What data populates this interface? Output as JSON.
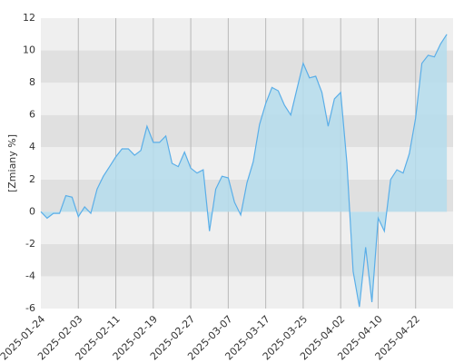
{
  "chart_data": {
    "type": "area",
    "y_label": "[Zmiany %]",
    "categories": [
      "2025-01-24",
      null,
      null,
      null,
      null,
      null,
      "2025-02-03",
      null,
      null,
      null,
      null,
      null,
      "2025-02-11",
      null,
      null,
      null,
      null,
      null,
      "2025-02-19",
      null,
      null,
      null,
      null,
      null,
      "2025-02-27",
      null,
      null,
      null,
      null,
      null,
      "2025-03-07",
      null,
      null,
      null,
      null,
      null,
      "2025-03-17",
      null,
      null,
      null,
      null,
      null,
      "2025-03-25",
      null,
      null,
      null,
      null,
      null,
      "2025-04-02",
      null,
      null,
      null,
      null,
      null,
      "2025-04-10",
      null,
      null,
      null,
      null,
      null,
      "2025-04-22",
      null,
      null,
      null,
      null,
      null
    ],
    "values": [
      0,
      -0.4,
      -0.1,
      -0.1,
      1.0,
      0.9,
      -0.3,
      0.3,
      -0.1,
      1.4,
      2.2,
      2.8,
      3.4,
      3.9,
      3.9,
      3.5,
      3.8,
      5.3,
      4.3,
      4.3,
      4.7,
      3.0,
      2.8,
      3.7,
      2.7,
      2.4,
      2.6,
      -1.2,
      1.4,
      2.2,
      2.1,
      0.6,
      -0.2,
      1.8,
      3.1,
      5.4,
      6.7,
      7.7,
      7.5,
      6.6,
      6.0,
      7.6,
      9.2,
      8.3,
      8.4,
      7.4,
      5.3,
      7.0,
      7.4,
      3.0,
      -3.7,
      -5.9,
      -2.2,
      -5.6,
      -0.4,
      -1.2,
      2.0,
      2.6,
      2.4,
      3.6,
      5.8,
      9.2,
      9.7,
      9.6,
      10.4,
      11.0
    ],
    "color": "#5aaee8",
    "fill": "#b4dcec",
    "ylim": [
      -6,
      12
    ],
    "yticks": [
      -6,
      -4,
      -2,
      0,
      2,
      4,
      6,
      8,
      10,
      12
    ],
    "grid": true
  }
}
